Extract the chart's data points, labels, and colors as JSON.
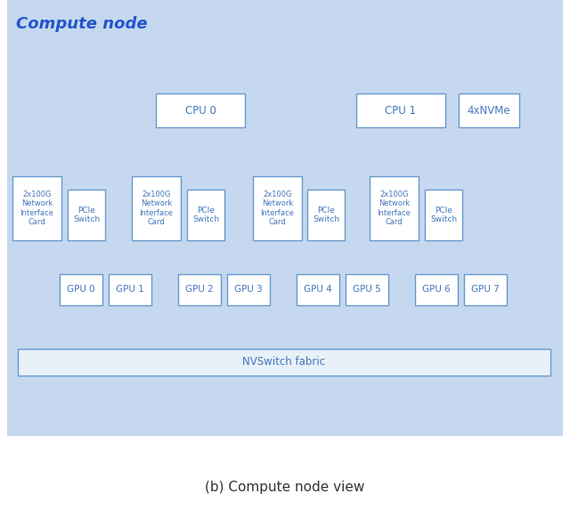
{
  "title": "Compute node",
  "caption": "(b) Compute node view",
  "bg_color": "#c5d8f0",
  "box_fill": "#ffffff",
  "box_edge": "#6699cc",
  "line_color": "#3355aa",
  "title_color": "#2255cc",
  "text_color": "#4477bb",
  "caption_color": "#333333",
  "nvswitch_fill": "#e8f0f8",
  "cpu0_label": "CPU 0",
  "cpu1_label": "CPU 1",
  "nvme_label": "4xNVMe",
  "nic_label": "2x100G\nNetwork\nInterface\nCard",
  "pcie_label": "PCIe\nSwitch",
  "gpu_labels": [
    "GPU 0",
    "GPU 1",
    "GPU 2",
    "GPU 3",
    "GPU 4",
    "GPU 5",
    "GPU 6",
    "GPU 7"
  ],
  "nvswitch_label": "NVSwitch fabric",
  "fig_w": 6.4,
  "fig_h": 5.73,
  "dpi": 100
}
